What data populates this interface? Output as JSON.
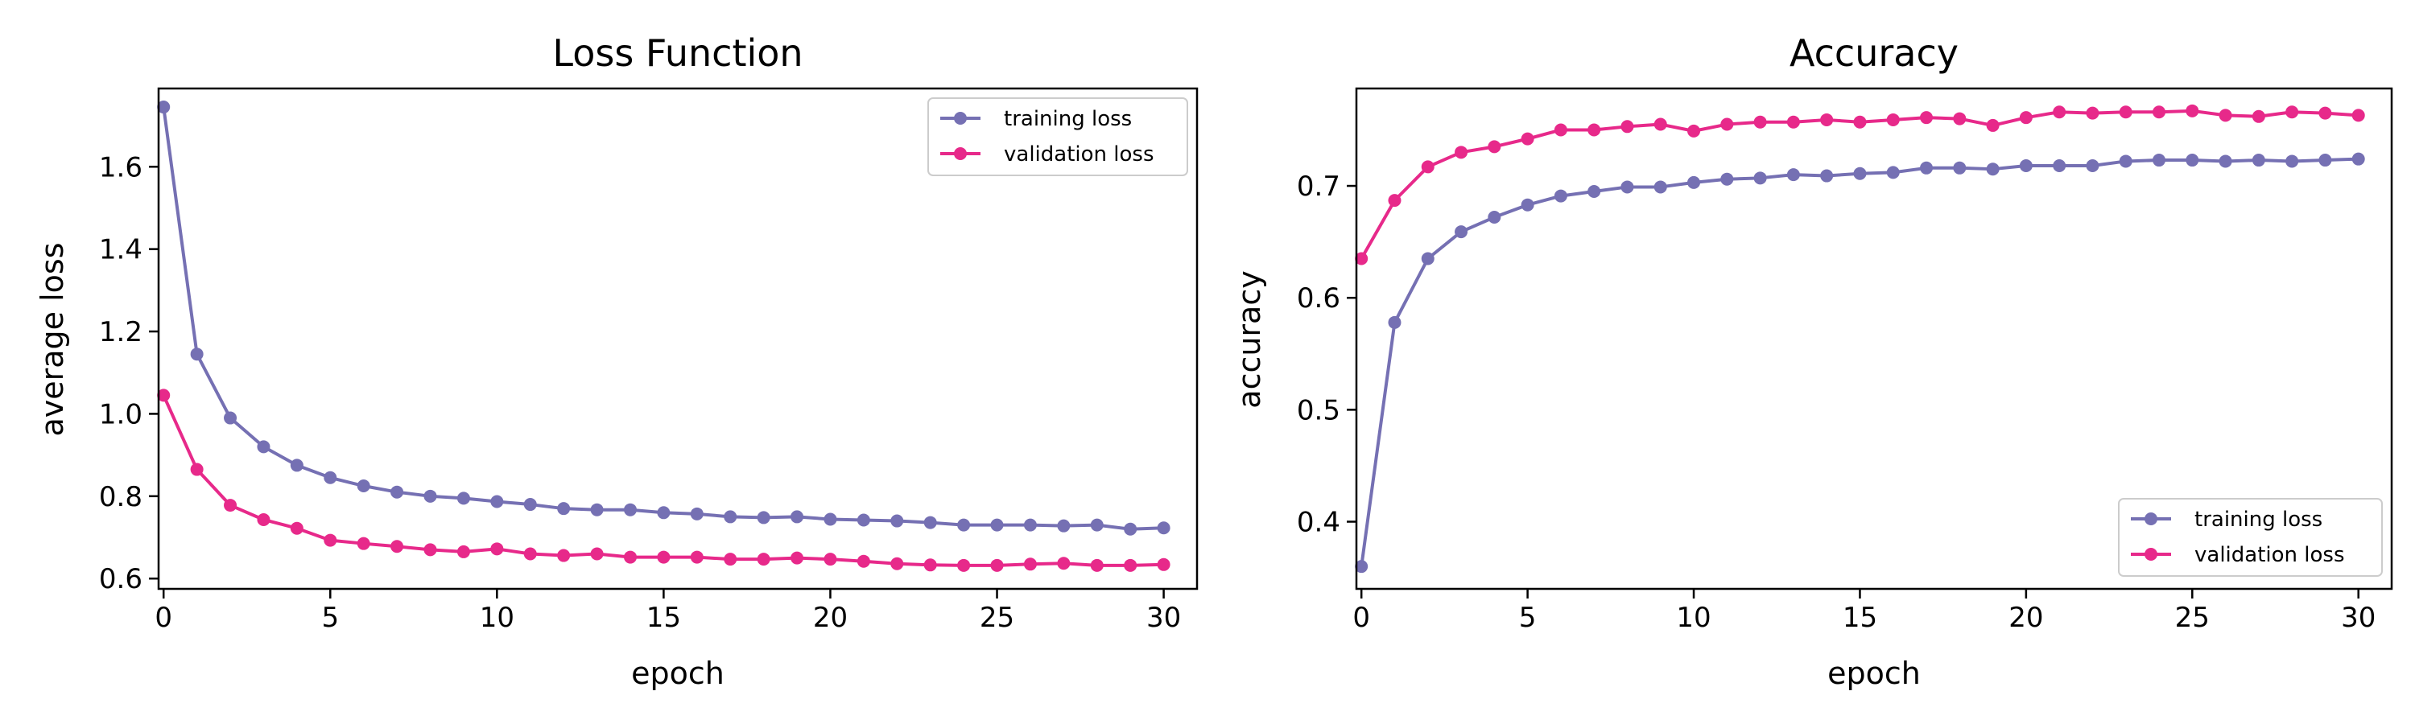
{
  "colors": {
    "training": "#7570b3",
    "validation": "#e7298a",
    "axis": "#000000",
    "background": "#ffffff"
  },
  "chart_data": [
    {
      "type": "line",
      "title": "Loss Function",
      "xlabel": "epoch",
      "ylabel": "average loss",
      "xlim": [
        -0.15,
        31
      ],
      "ylim": [
        0.575,
        1.79
      ],
      "xticks": [
        0,
        5,
        10,
        15,
        20,
        25,
        30
      ],
      "yticks": [
        0.6,
        0.8,
        1.0,
        1.2,
        1.4,
        1.6
      ],
      "ytick_labels": [
        "0.6",
        "0.8",
        "1.0",
        "1.2",
        "1.4",
        "1.6"
      ],
      "grid": false,
      "legend": "top-right",
      "x": [
        0,
        1,
        2,
        3,
        4,
        5,
        6,
        7,
        8,
        9,
        10,
        11,
        12,
        13,
        14,
        15,
        16,
        17,
        18,
        19,
        20,
        21,
        22,
        23,
        24,
        25,
        26,
        27,
        28,
        29,
        30
      ],
      "series": [
        {
          "name": "training loss",
          "color": "#7570b3",
          "values": [
            1.745,
            1.145,
            0.99,
            0.92,
            0.875,
            0.845,
            0.825,
            0.81,
            0.8,
            0.795,
            0.787,
            0.78,
            0.77,
            0.767,
            0.767,
            0.76,
            0.757,
            0.75,
            0.748,
            0.75,
            0.744,
            0.742,
            0.74,
            0.736,
            0.73,
            0.73,
            0.73,
            0.728,
            0.73,
            0.72,
            0.723
          ]
        },
        {
          "name": "validation loss",
          "color": "#e7298a",
          "values": [
            1.045,
            0.865,
            0.778,
            0.743,
            0.722,
            0.693,
            0.685,
            0.678,
            0.67,
            0.665,
            0.672,
            0.66,
            0.656,
            0.66,
            0.652,
            0.652,
            0.652,
            0.647,
            0.647,
            0.65,
            0.647,
            0.642,
            0.636,
            0.633,
            0.632,
            0.632,
            0.635,
            0.637,
            0.632,
            0.632,
            0.634
          ]
        }
      ]
    },
    {
      "type": "line",
      "title": "Accuracy",
      "xlabel": "epoch",
      "ylabel": "accuracy",
      "xlim": [
        -0.15,
        31
      ],
      "ylim": [
        0.34,
        0.787
      ],
      "xticks": [
        0,
        5,
        10,
        15,
        20,
        25,
        30
      ],
      "yticks": [
        0.4,
        0.5,
        0.6,
        0.7
      ],
      "ytick_labels": [
        "0.4",
        "0.5",
        "0.6",
        "0.7"
      ],
      "grid": false,
      "legend": "bottom-right",
      "x": [
        0,
        1,
        2,
        3,
        4,
        5,
        6,
        7,
        8,
        9,
        10,
        11,
        12,
        13,
        14,
        15,
        16,
        17,
        18,
        19,
        20,
        21,
        22,
        23,
        24,
        25,
        26,
        27,
        28,
        29,
        30
      ],
      "series": [
        {
          "name": "training loss",
          "color": "#7570b3",
          "values": [
            0.36,
            0.578,
            0.635,
            0.659,
            0.672,
            0.683,
            0.691,
            0.695,
            0.699,
            0.699,
            0.703,
            0.706,
            0.707,
            0.71,
            0.709,
            0.711,
            0.712,
            0.716,
            0.716,
            0.715,
            0.718,
            0.718,
            0.718,
            0.722,
            0.723,
            0.723,
            0.722,
            0.723,
            0.722,
            0.723,
            0.724
          ]
        },
        {
          "name": "validation loss",
          "color": "#e7298a",
          "values": [
            0.635,
            0.687,
            0.717,
            0.73,
            0.735,
            0.742,
            0.75,
            0.75,
            0.753,
            0.755,
            0.749,
            0.755,
            0.757,
            0.757,
            0.759,
            0.757,
            0.759,
            0.761,
            0.76,
            0.754,
            0.761,
            0.766,
            0.765,
            0.766,
            0.766,
            0.767,
            0.763,
            0.762,
            0.766,
            0.765,
            0.763
          ]
        }
      ]
    }
  ]
}
